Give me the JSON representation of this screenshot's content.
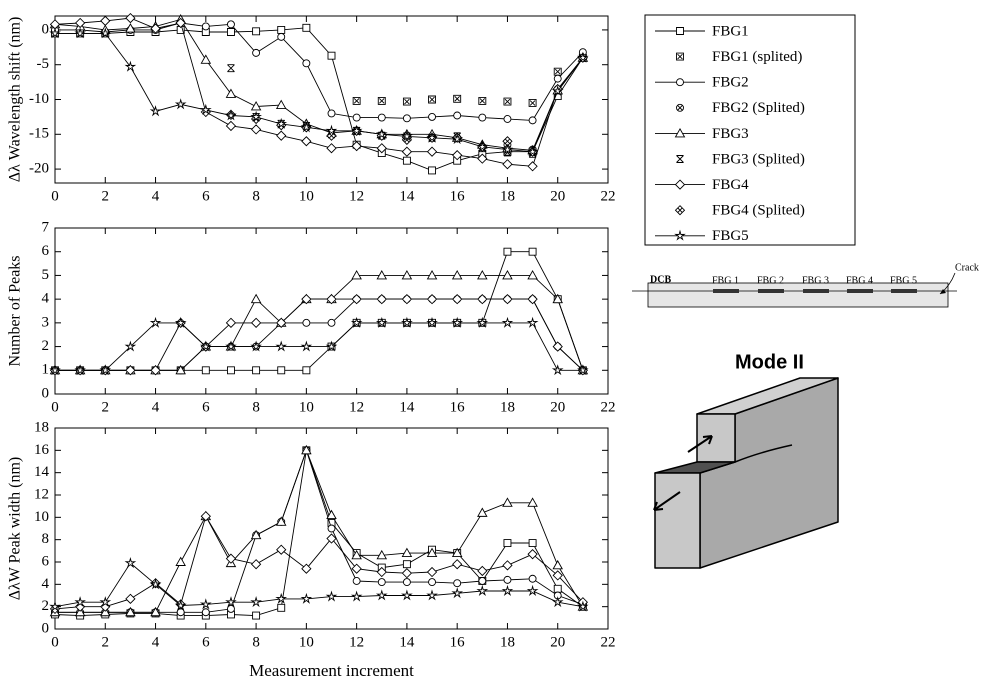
{
  "chart_data": [
    {
      "type": "line",
      "ylabel": "Δλ Wavelength shift (nm)",
      "color": "#000000",
      "x": [
        0,
        1,
        2,
        3,
        4,
        5,
        6,
        7,
        8,
        9,
        10,
        11,
        12,
        13,
        14,
        15,
        16,
        17,
        18,
        19,
        20,
        21
      ],
      "xlim": [
        0,
        22
      ],
      "xticks": [
        0,
        2,
        4,
        6,
        8,
        10,
        12,
        14,
        16,
        18,
        20,
        22
      ],
      "ylim": [
        -22,
        2
      ],
      "yticks": [
        0,
        -5,
        -10,
        -15,
        -20
      ],
      "series": [
        {
          "name": "FBG1",
          "marker": "square",
          "line": true,
          "values": [
            -0.5,
            -0.5,
            -0.5,
            -0.3,
            -0.3,
            0,
            -0.3,
            -0.3,
            -0.2,
            0,
            0.3,
            -3.7,
            -16.5,
            -17.7,
            -18.8,
            -20.2,
            -18.8,
            -17.8,
            -17.5,
            -17.5,
            -9.5,
            -4
          ]
        },
        {
          "name": "FBG1 (splited)",
          "marker": "square-x",
          "line": false,
          "values": [
            null,
            null,
            null,
            null,
            null,
            null,
            null,
            null,
            null,
            null,
            null,
            null,
            -10.2,
            -10.2,
            -10.3,
            -10,
            -9.9,
            -10.2,
            -10.3,
            -10.5,
            -6,
            null
          ]
        },
        {
          "name": "FBG2",
          "marker": "circle",
          "line": true,
          "values": [
            0,
            0,
            -0.3,
            0,
            0,
            1,
            0.5,
            0.8,
            -3.3,
            -1,
            -4.8,
            -12,
            -12.6,
            -12.6,
            -12.7,
            -12.5,
            -12.3,
            -12.6,
            -12.8,
            -13,
            -7,
            -3.2
          ]
        },
        {
          "name": "FBG2 (Splited)",
          "marker": "circle-x",
          "line": false,
          "values": [
            null,
            null,
            null,
            null,
            null,
            null,
            null,
            null,
            null,
            null,
            null,
            null,
            -14.5,
            -15.2,
            -15.5,
            -15.3,
            -15.5,
            -16.8,
            -16.5,
            -17.2,
            -8.5,
            null
          ]
        },
        {
          "name": "FBG3",
          "marker": "triangle",
          "line": true,
          "values": [
            0.8,
            0.5,
            0,
            0.2,
            0.5,
            1.5,
            -4.3,
            -9.2,
            -11,
            -10.8,
            -13.5,
            -14.8,
            -14.5,
            -15,
            -15,
            -15,
            -15.5,
            -16.5,
            -17,
            -17.3,
            -8.7,
            -4
          ]
        },
        {
          "name": "FBG3 (Splited)",
          "marker": "x",
          "line": false,
          "values": [
            null,
            null,
            null,
            null,
            null,
            null,
            null,
            -5.5,
            -12.5,
            -13.5,
            -13.8,
            -15,
            -14.5,
            -15.2,
            -15.3,
            -15.5,
            -15.3,
            -17,
            -17.6,
            -17.8,
            null,
            null
          ]
        },
        {
          "name": "FBG4",
          "marker": "diamond",
          "line": true,
          "values": [
            0.8,
            1,
            1.3,
            1.7,
            0.2,
            1,
            -11.8,
            -13.8,
            -14.3,
            -15.2,
            -16,
            -17,
            -16.7,
            -17,
            -17.5,
            -17.5,
            -18,
            -18.5,
            -19.3,
            -19.6,
            -8.5,
            -4
          ]
        },
        {
          "name": "FBG4 (Splited)",
          "marker": "diamond-x",
          "line": false,
          "values": [
            null,
            null,
            null,
            null,
            null,
            null,
            null,
            -12.2,
            -12.8,
            -13.7,
            -14,
            -15.2,
            -14.5,
            -15.2,
            -15.8,
            -15.5,
            -15.5,
            -16.8,
            -16,
            -17.5,
            null,
            null
          ]
        },
        {
          "name": "FBG5",
          "marker": "star",
          "line": true,
          "values": [
            -0.5,
            -0.5,
            -0.5,
            -5.3,
            -11.7,
            -10.7,
            -11.5,
            -12.3,
            -12.5,
            -13.5,
            -14,
            -14.5,
            -14.5,
            -15,
            -15.3,
            -15.5,
            -15.7,
            -16.8,
            -17.2,
            -17.5,
            -8.8,
            -4
          ]
        }
      ]
    },
    {
      "type": "line",
      "ylabel": "Number of Peaks",
      "color": "#000000",
      "x": [
        0,
        1,
        2,
        3,
        4,
        5,
        6,
        7,
        8,
        9,
        10,
        11,
        12,
        13,
        14,
        15,
        16,
        17,
        18,
        19,
        20,
        21
      ],
      "xlim": [
        0,
        22
      ],
      "xticks": [
        0,
        2,
        4,
        6,
        8,
        10,
        12,
        14,
        16,
        18,
        20,
        22
      ],
      "ylim": [
        0,
        7
      ],
      "yticks": [
        0,
        1,
        2,
        3,
        4,
        5,
        6,
        7
      ],
      "series": [
        {
          "marker": "square",
          "line": true,
          "values": [
            1,
            1,
            1,
            1,
            1,
            1,
            1,
            1,
            1,
            1,
            1,
            2,
            3,
            3,
            3,
            3,
            3,
            3,
            6,
            6,
            4,
            1
          ]
        },
        {
          "marker": "circle",
          "line": true,
          "values": [
            1,
            1,
            1,
            1,
            1,
            1,
            2,
            2,
            2,
            3,
            3,
            3,
            4,
            4,
            4,
            4,
            4,
            4,
            4,
            4,
            2,
            1
          ]
        },
        {
          "marker": "triangle",
          "line": true,
          "values": [
            1,
            1,
            1,
            1,
            1,
            1,
            2,
            2,
            4,
            3,
            4,
            4,
            5,
            5,
            5,
            5,
            5,
            5,
            5,
            5,
            4,
            1
          ]
        },
        {
          "marker": "diamond",
          "line": true,
          "values": [
            1,
            1,
            1,
            1,
            1,
            3,
            2,
            3,
            3,
            3,
            4,
            4,
            4,
            4,
            4,
            4,
            4,
            4,
            4,
            4,
            2,
            1
          ]
        },
        {
          "marker": "star",
          "line": true,
          "values": [
            1,
            1,
            1,
            2,
            3,
            3,
            2,
            2,
            2,
            2,
            2,
            2,
            3,
            3,
            3,
            3,
            3,
            3,
            3,
            3,
            1,
            1
          ]
        }
      ]
    },
    {
      "type": "line",
      "ylabel": "ΔλW Peak width (nm)",
      "xlabel": "Measurement increment",
      "color": "#000000",
      "x": [
        0,
        1,
        2,
        3,
        4,
        5,
        6,
        7,
        8,
        9,
        10,
        11,
        12,
        13,
        14,
        15,
        16,
        17,
        18,
        19,
        20,
        21
      ],
      "xlim": [
        0,
        22
      ],
      "xticks": [
        0,
        2,
        4,
        6,
        8,
        10,
        12,
        14,
        16,
        18,
        20,
        22
      ],
      "ylim": [
        0,
        18
      ],
      "yticks": [
        0,
        2,
        4,
        6,
        8,
        10,
        12,
        14,
        16,
        18
      ],
      "series": [
        {
          "marker": "square",
          "line": true,
          "values": [
            1.3,
            1.2,
            1.3,
            1.4,
            1.4,
            1.2,
            1.2,
            1.3,
            1.2,
            1.9,
            16,
            9.5,
            6.8,
            5.5,
            5.8,
            7.1,
            6.8,
            4.3,
            7.7,
            7.7,
            3.6,
            2
          ]
        },
        {
          "marker": "circle",
          "line": true,
          "values": [
            1.5,
            1.5,
            1.5,
            1.5,
            1.5,
            1.5,
            1.5,
            1.8,
            8.4,
            9.6,
            16,
            9,
            4.3,
            4.2,
            4.2,
            4.2,
            4.1,
            4.3,
            4.4,
            4.5,
            3,
            2.2
          ]
        },
        {
          "marker": "triangle",
          "line": true,
          "values": [
            1.5,
            1.5,
            1.5,
            1.5,
            1.5,
            6,
            10.1,
            5.9,
            8.4,
            9.6,
            16,
            10.2,
            6.6,
            6.6,
            6.8,
            6.8,
            6.8,
            10.4,
            11.3,
            11.3,
            5.7,
            2
          ]
        },
        {
          "marker": "diamond",
          "line": true,
          "values": [
            1.8,
            2,
            2,
            2.7,
            4.1,
            2.2,
            10.1,
            6.3,
            5.8,
            7.1,
            5.4,
            8.1,
            5.4,
            5.1,
            5,
            5.1,
            5.8,
            5.2,
            5.7,
            6.7,
            4.8,
            2.4
          ]
        },
        {
          "marker": "star",
          "line": true,
          "values": [
            2,
            2.4,
            2.4,
            5.9,
            4,
            2.1,
            2.2,
            2.4,
            2.4,
            2.7,
            2.7,
            2.9,
            2.9,
            3,
            3,
            3,
            3.2,
            3.4,
            3.4,
            3.4,
            2.4,
            2
          ]
        }
      ]
    }
  ],
  "diagram": {
    "beam_label": "DCB",
    "sensors": [
      "FBG 1",
      "FBG 2",
      "FBG 3",
      "FBG 4",
      "FBG 5"
    ],
    "crack_label": "Crack",
    "mode_label": "Mode II"
  }
}
